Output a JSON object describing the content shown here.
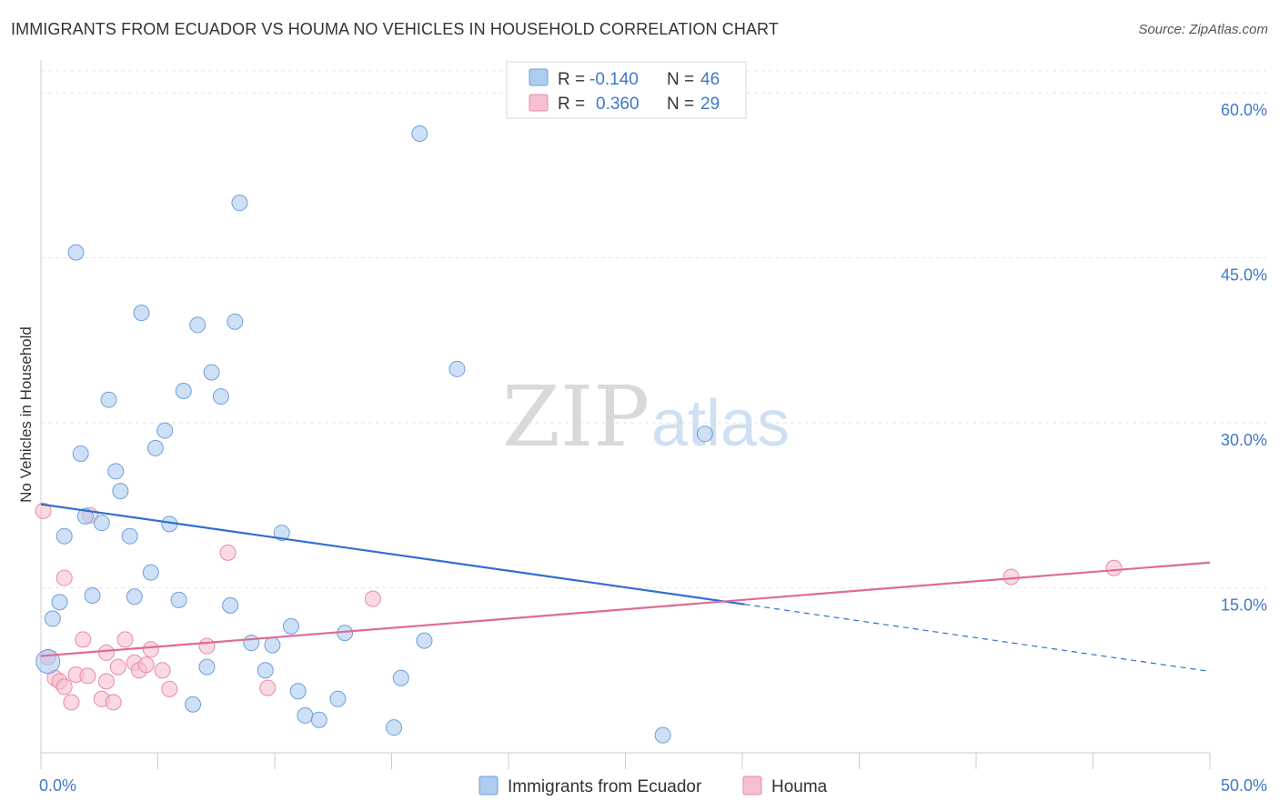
{
  "title": "IMMIGRANTS FROM ECUADOR VS HOUMA NO VEHICLES IN HOUSEHOLD CORRELATION CHART",
  "source": "Source: ZipAtlas.com",
  "watermark": {
    "zip": "ZIP",
    "atlas": "atlas"
  },
  "colors": {
    "blue_fill": "#aecbf0",
    "blue_stroke": "#6f9fd8",
    "blue_line": "#2f6fcf",
    "pink_fill": "#f6bfd0",
    "pink_stroke": "#e88aa8",
    "pink_line": "#e06a93",
    "axis_text": "#3f78c8",
    "grid": "#e4e4e4"
  },
  "stats_legend": [
    {
      "r_label": "R =",
      "r_value": "-0.140",
      "n_label": "N =",
      "n_value": "46"
    },
    {
      "r_label": "R =",
      "r_value": "0.360",
      "n_label": "N =",
      "n_value": "29"
    }
  ],
  "chart_data": {
    "type": "scatter",
    "title": "IMMIGRANTS FROM ECUADOR VS HOUMA NO VEHICLES IN HOUSEHOLD CORRELATION CHART",
    "xlabel": "",
    "ylabel": "No Vehicles in Household",
    "xlim": [
      0,
      50
    ],
    "ylim": [
      0,
      62
    ],
    "x_tick_labels": [
      "0.0%",
      "50.0%"
    ],
    "y_ticks": [
      15,
      30,
      45,
      60
    ],
    "y_tick_labels": [
      "15.0%",
      "30.0%",
      "45.0%",
      "60.0%"
    ],
    "grid": true,
    "legend_position": "bottom",
    "series": [
      {
        "name": "Immigrants from Ecuador",
        "color": "#aecbf0",
        "points": [
          [
            0.3,
            8.3
          ],
          [
            0.5,
            12.2
          ],
          [
            0.8,
            13.7
          ],
          [
            1.0,
            19.7
          ],
          [
            1.5,
            45.5
          ],
          [
            1.7,
            27.2
          ],
          [
            1.9,
            21.5
          ],
          [
            2.2,
            14.3
          ],
          [
            2.6,
            20.9
          ],
          [
            2.9,
            32.1
          ],
          [
            3.2,
            25.6
          ],
          [
            3.4,
            23.8
          ],
          [
            3.8,
            19.7
          ],
          [
            4.0,
            14.2
          ],
          [
            4.3,
            40.0
          ],
          [
            4.7,
            16.4
          ],
          [
            4.9,
            27.7
          ],
          [
            5.3,
            29.3
          ],
          [
            5.5,
            20.8
          ],
          [
            5.9,
            13.9
          ],
          [
            6.1,
            32.9
          ],
          [
            6.5,
            4.4
          ],
          [
            6.7,
            38.9
          ],
          [
            7.1,
            7.8
          ],
          [
            7.3,
            34.6
          ],
          [
            7.7,
            32.4
          ],
          [
            8.1,
            13.4
          ],
          [
            8.3,
            39.2
          ],
          [
            8.5,
            50.0
          ],
          [
            9.0,
            10.0
          ],
          [
            9.6,
            7.5
          ],
          [
            9.9,
            9.8
          ],
          [
            10.3,
            20.0
          ],
          [
            10.7,
            11.5
          ],
          [
            11.0,
            5.6
          ],
          [
            11.3,
            3.4
          ],
          [
            11.9,
            3.0
          ],
          [
            12.7,
            4.9
          ],
          [
            13.0,
            10.9
          ],
          [
            15.1,
            2.3
          ],
          [
            15.4,
            6.8
          ],
          [
            16.2,
            56.3
          ],
          [
            16.4,
            10.2
          ],
          [
            17.8,
            34.9
          ],
          [
            26.6,
            1.6
          ],
          [
            28.4,
            29.0
          ]
        ]
      },
      {
        "name": "Houma",
        "color": "#f6bfd0",
        "points": [
          [
            0.1,
            22.0
          ],
          [
            0.6,
            6.8
          ],
          [
            0.8,
            6.5
          ],
          [
            1.0,
            15.9
          ],
          [
            1.3,
            4.6
          ],
          [
            1.5,
            7.1
          ],
          [
            1.8,
            10.3
          ],
          [
            2.0,
            7.0
          ],
          [
            2.1,
            21.6
          ],
          [
            2.6,
            4.9
          ],
          [
            2.8,
            9.1
          ],
          [
            3.1,
            4.6
          ],
          [
            3.3,
            7.8
          ],
          [
            3.6,
            10.3
          ],
          [
            4.0,
            8.2
          ],
          [
            4.2,
            7.5
          ],
          [
            4.5,
            8.0
          ],
          [
            4.7,
            9.4
          ],
          [
            5.2,
            7.5
          ],
          [
            5.5,
            5.8
          ],
          [
            7.1,
            9.7
          ],
          [
            8.0,
            18.2
          ],
          [
            9.7,
            5.9
          ],
          [
            14.2,
            14.0
          ],
          [
            41.5,
            16.0
          ],
          [
            45.9,
            16.8
          ],
          [
            0.3,
            8.7
          ],
          [
            2.8,
            6.5
          ],
          [
            1.0,
            6.0
          ]
        ]
      }
    ],
    "trend_lines": [
      {
        "series": "Immigrants from Ecuador",
        "x0": 0,
        "y0": 22.6,
        "x1": 30.1,
        "y1": 13.5,
        "dashed_to_x": 50,
        "dashed_to_y": 7.4
      },
      {
        "series": "Houma",
        "x0": 0,
        "y0": 8.8,
        "x1": 50,
        "y1": 17.3
      }
    ]
  }
}
